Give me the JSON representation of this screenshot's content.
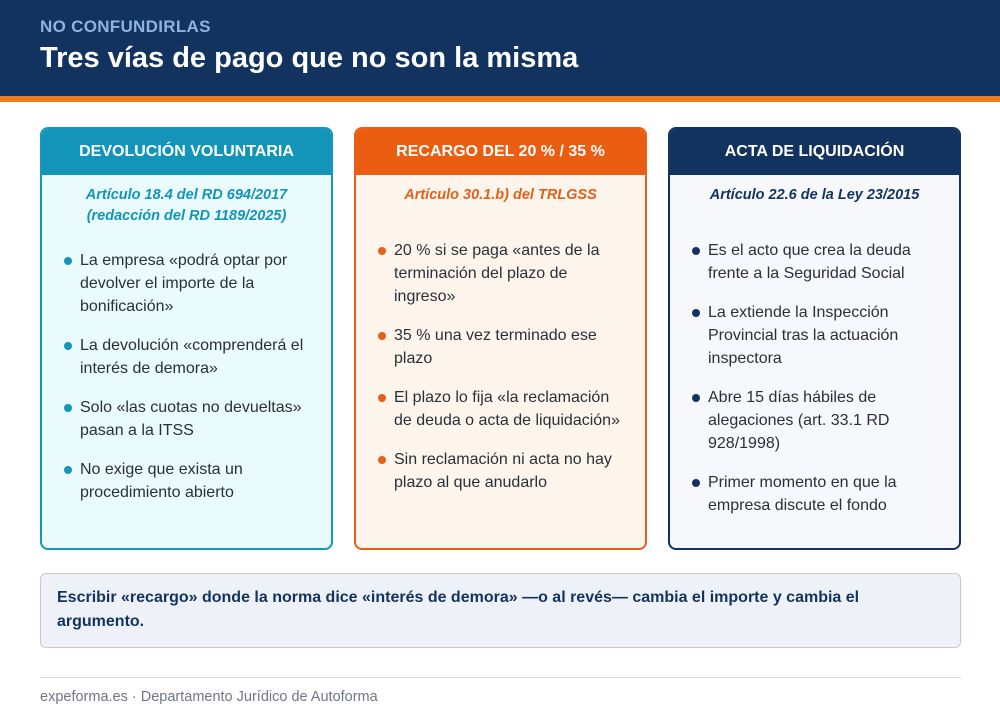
{
  "header": {
    "eyebrow": "NO CONFUNDIRLAS",
    "title": "Tres vías de pago que no son la misma"
  },
  "cards": [
    {
      "heading": "DEVOLUCIÓN VOLUNTARIA",
      "ref_line1": "Artículo 18.4 del RD 694/2017",
      "ref_line2": "(redacción del RD 1189/2025)",
      "items": [
        "La empresa «podrá optar por devolver el importe de la bonificación»",
        "La devolución «comprenderá el interés de demora»",
        "Solo «las cuotas no devueltas» pasan a la ITSS",
        "No exige que exista un procedimiento abierto"
      ]
    },
    {
      "heading": "RECARGO DEL 20 % / 35 %",
      "ref_line1": "Artículo 30.1.b) del TRLGSS",
      "ref_line2": "",
      "items": [
        "20 % si se paga «antes de la terminación del plazo de ingreso»",
        "35 % una vez terminado ese plazo",
        "El plazo lo fija «la reclamación de deuda o acta de liquidación»",
        "Sin reclamación ni acta no hay plazo al que anudarlo"
      ]
    },
    {
      "heading": "ACTA DE LIQUIDACIÓN",
      "ref_line1": "Artículo 22.6 de la Ley 23/2015",
      "ref_line2": "",
      "items": [
        "Es el acto que crea la deuda frente a la Seguridad Social",
        "La extiende la Inspección Provincial tras la actuación inspectora",
        "Abre 15 días hábiles de alegaciones (art. 33.1 RD 928/1998)",
        "Primer momento en que la empresa discute el fondo"
      ]
    }
  ],
  "note": "Escribir «recargo» donde la norma dice «interés de demora» —o al revés— cambia el importe y cambia el argumento.",
  "footer": "expeforma.es · Departamento Jurídico de Autoforma",
  "colors": {
    "navy": "#12335f",
    "orange": "#eb5e12",
    "teal": "#1295b8",
    "accent_bar": "#ee7d22"
  }
}
